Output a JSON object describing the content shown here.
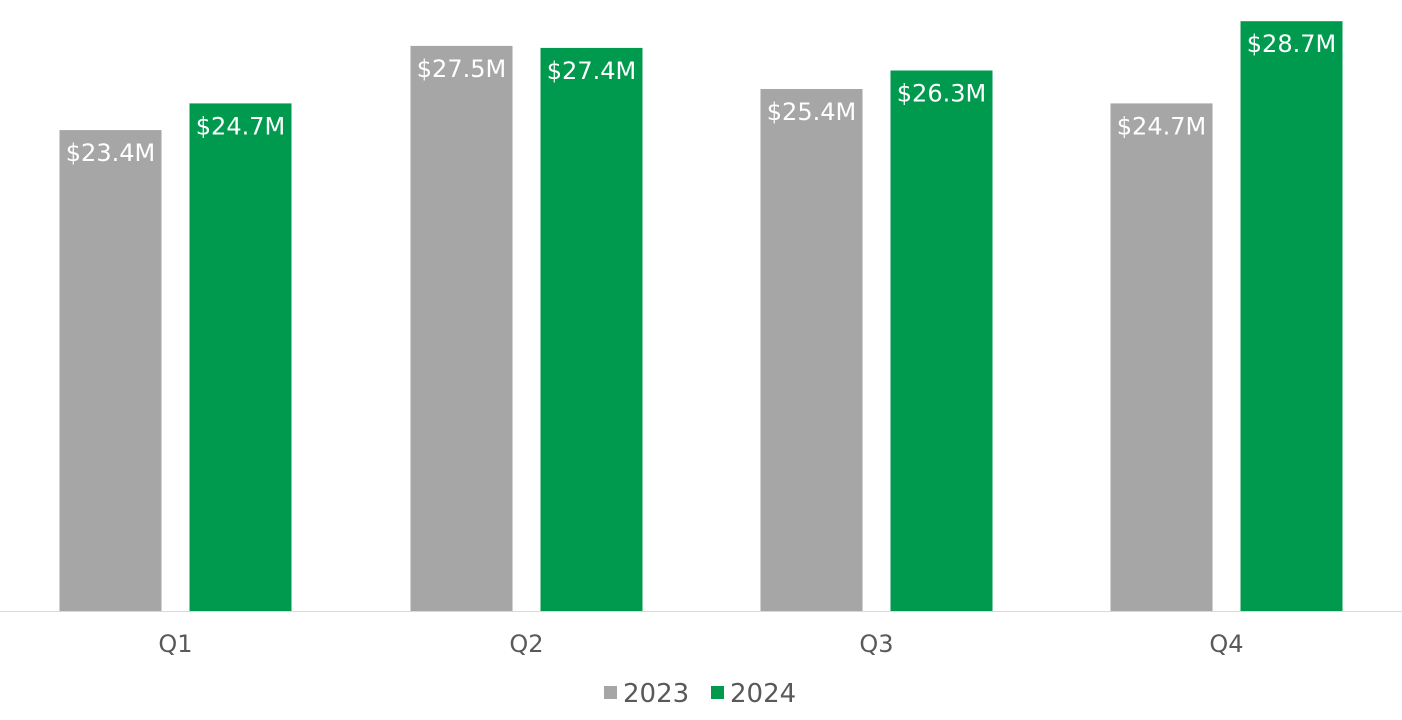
{
  "chart_data": {
    "type": "bar",
    "categories": [
      "Q1",
      "Q2",
      "Q3",
      "Q4"
    ],
    "series": [
      {
        "name": "2023",
        "values": [
          23.4,
          27.5,
          25.4,
          24.7
        ],
        "labels": [
          "$23.4M",
          "$27.5M",
          "$25.4M",
          "$24.7M"
        ],
        "color": "#A6A6A6"
      },
      {
        "name": "2024",
        "values": [
          24.7,
          27.4,
          26.3,
          28.7
        ],
        "labels": [
          "$24.7M",
          "$27.4M",
          "$26.3M",
          "$28.7M"
        ],
        "color": "#009A4E"
      }
    ],
    "title": "",
    "xlabel": "",
    "ylabel": "",
    "ylim": [
      0,
      30
    ],
    "grid": false,
    "legend": "bottom-center",
    "axis_color": "#D9D9D9"
  }
}
